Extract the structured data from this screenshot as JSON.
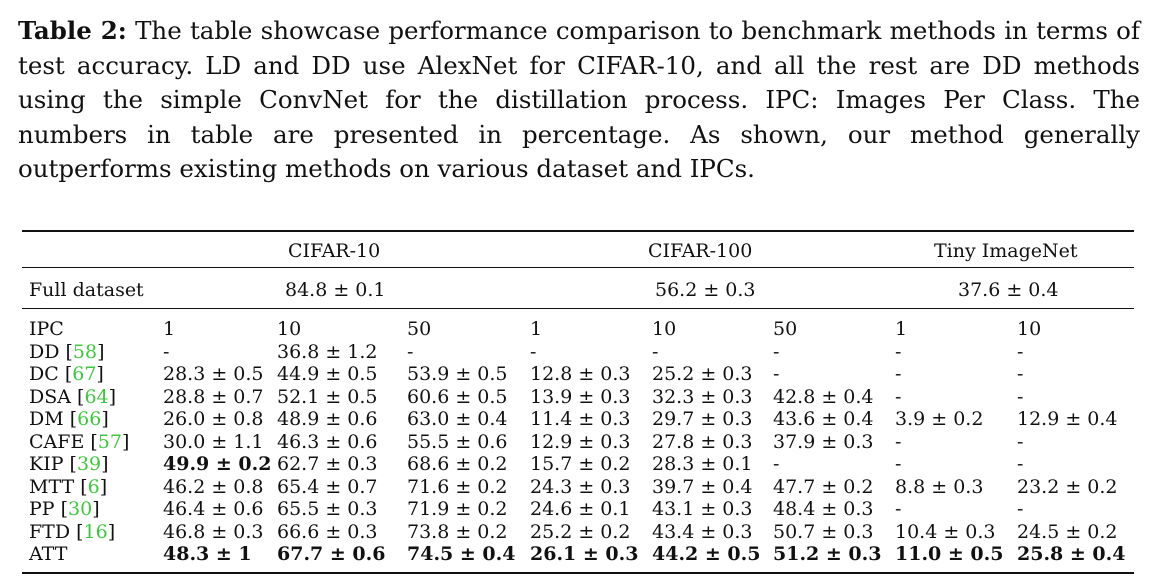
{
  "caption": {
    "label": "Table 2:",
    "text": "The table showcase performance comparison to benchmark methods in terms of test accuracy. LD and DD use AlexNet for CIFAR-10, and all the rest are DD methods using the simple ConvNet for the distillation process. IPC: Images Per Class. The numbers in table are presented in percentage. As shown, our method generally outperforms existing methods on various dataset and IPCs."
  },
  "table": {
    "datasets": [
      "CIFAR-10",
      "CIFAR-100",
      "Tiny ImageNet"
    ],
    "full_dataset": {
      "label": "Full dataset",
      "values": [
        "84.8 ± 0.1",
        "56.2 ± 0.3",
        "37.6 ± 0.4"
      ]
    },
    "ipc_header": {
      "label": "IPC",
      "values": [
        "1",
        "10",
        "50",
        "1",
        "10",
        "50",
        "1",
        "10"
      ]
    },
    "rows": [
      {
        "method": "DD",
        "ref": "58",
        "cells": [
          "-",
          "36.8 ± 1.2",
          "-",
          "-",
          "-",
          "-",
          "-",
          "-"
        ]
      },
      {
        "method": "DC",
        "ref": "67",
        "cells": [
          "28.3 ± 0.5",
          "44.9 ± 0.5",
          "53.9 ± 0.5",
          "12.8 ± 0.3",
          "25.2 ± 0.3",
          "-",
          "-",
          "-"
        ]
      },
      {
        "method": "DSA",
        "ref": "64",
        "cells": [
          "28.8 ± 0.7",
          "52.1 ± 0.5",
          "60.6 ± 0.5",
          "13.9 ± 0.3",
          "32.3 ± 0.3",
          "42.8 ± 0.4",
          "-",
          "-"
        ]
      },
      {
        "method": "DM",
        "ref": "66",
        "cells": [
          "26.0 ± 0.8",
          "48.9 ± 0.6",
          "63.0 ± 0.4",
          "11.4 ± 0.3",
          "29.7 ± 0.3",
          "43.6 ± 0.4",
          "3.9 ± 0.2",
          "12.9 ± 0.4"
        ]
      },
      {
        "method": "CAFE",
        "ref": "57",
        "cells": [
          "30.0 ± 1.1",
          "46.3 ± 0.6",
          "55.5 ± 0.6",
          "12.9 ± 0.3",
          "27.8 ± 0.3",
          "37.9 ± 0.3",
          "-",
          "-"
        ]
      },
      {
        "method": "KIP",
        "ref": "39",
        "cells": [
          "49.9 ± 0.2",
          "62.7 ± 0.3",
          "68.6 ± 0.2",
          "15.7 ± 0.2",
          "28.3 ± 0.1",
          "-",
          "-",
          "-"
        ]
      },
      {
        "method": "MTT",
        "ref": "6",
        "cells": [
          "46.2 ± 0.8",
          "65.4 ± 0.7",
          "71.6 ± 0.2",
          "24.3 ± 0.3",
          "39.7 ± 0.4",
          "47.7 ± 0.2",
          "8.8 ± 0.3",
          "23.2 ± 0.2"
        ]
      },
      {
        "method": "PP",
        "ref": "30",
        "cells": [
          "46.4 ± 0.6",
          "65.5 ± 0.3",
          "71.9 ± 0.2",
          "24.6 ± 0.1",
          "43.1 ± 0.3",
          "48.4 ± 0.3",
          "-",
          "-"
        ]
      },
      {
        "method": "FTD",
        "ref": "16",
        "cells": [
          "46.8 ± 0.3",
          "66.6 ± 0.3",
          "73.8 ± 0.2",
          "25.2 ± 0.2",
          "43.4 ± 0.3",
          "50.7 ± 0.3",
          "10.4 ± 0.3",
          "24.5 ± 0.2"
        ]
      },
      {
        "method": "ATT",
        "ref": "",
        "cells": [
          "48.3 ± 1",
          "67.7 ± 0.6",
          "74.5 ± 0.4",
          "26.1 ± 0.3",
          "44.2 ± 0.5",
          "51.2 ± 0.3",
          "11.0 ± 0.5",
          "25.8 ± 0.4"
        ]
      }
    ],
    "bold_cells": [
      [
        5,
        0
      ],
      [
        9,
        0
      ],
      [
        9,
        1
      ],
      [
        9,
        2
      ],
      [
        9,
        3
      ],
      [
        9,
        4
      ],
      [
        9,
        5
      ],
      [
        9,
        6
      ],
      [
        9,
        7
      ]
    ]
  }
}
